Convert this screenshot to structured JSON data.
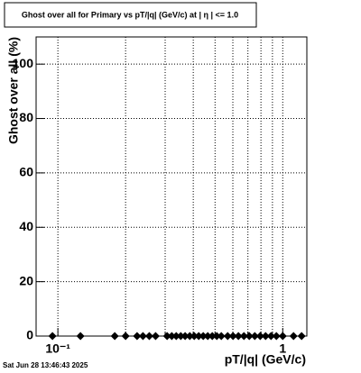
{
  "chart_data": {
    "type": "scatter",
    "title": "Ghost over all for Primary vs pT/|q| (GeV/c) at |  η  | <= 1.0",
    "x_label": "pT/|q| (GeV/c)",
    "y_label": "Ghost over all (%)",
    "timestamp": "Sat Jun 28 13:46:43 2025",
    "x_log": true,
    "grid": true,
    "color": "#000000",
    "xlim": [
      0.08,
      1.28
    ],
    "ylim": [
      0,
      110
    ],
    "xticks": [
      {
        "value": 0.1,
        "label": "10⁻¹"
      },
      1
    ],
    "xminorticks": [
      0.2,
      0.3,
      0.4,
      0.5,
      0.6,
      0.7,
      0.8,
      0.9
    ],
    "yticks": [
      0,
      20,
      40,
      60,
      80,
      100
    ],
    "x": [
      0.0946,
      0.126,
      0.179,
      0.2,
      0.225,
      0.239,
      0.255,
      0.272,
      0.306,
      0.321,
      0.336,
      0.352,
      0.368,
      0.386,
      0.404,
      0.423,
      0.443,
      0.464,
      0.486,
      0.509,
      0.533,
      0.569,
      0.601,
      0.635,
      0.672,
      0.71,
      0.751,
      0.794,
      0.839,
      0.887,
      0.937,
      1.0,
      1.117,
      1.213
    ],
    "values": [
      0,
      0,
      0,
      0,
      0,
      0,
      0,
      0,
      0,
      0,
      0,
      0,
      0,
      0,
      0,
      0,
      0,
      0,
      0,
      0,
      0,
      0,
      0,
      0,
      0,
      0,
      0,
      0,
      0,
      0,
      0,
      0,
      0,
      0
    ]
  }
}
